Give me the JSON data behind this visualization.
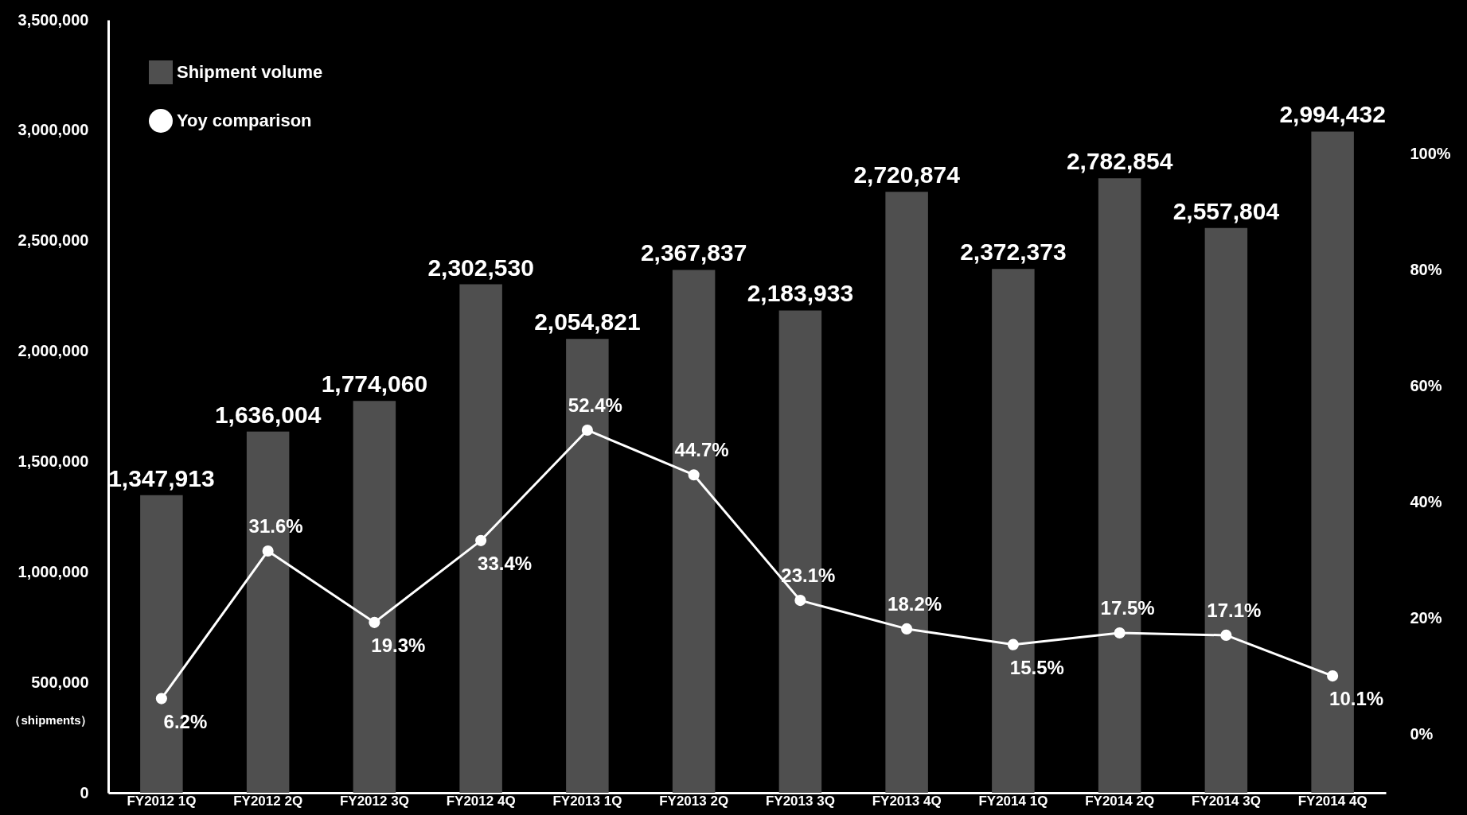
{
  "chart_data": {
    "type": "bar",
    "categories": [
      "FY2012 1Q",
      "FY2012 2Q",
      "FY2012 3Q",
      "FY2012 4Q",
      "FY2013 1Q",
      "FY2013 2Q",
      "FY2013 3Q",
      "FY2013 4Q",
      "FY2014 1Q",
      "FY2014 2Q",
      "FY2014 3Q",
      "FY2014 4Q"
    ],
    "series": [
      {
        "name": "Shipment volume",
        "color": "#4f4f4f",
        "values": [
          1347913,
          1636004,
          1774060,
          2302530,
          2054821,
          2367837,
          2183933,
          2720874,
          2372373,
          2782854,
          2557804,
          2994432
        ],
        "value_labels": [
          "1,347,913",
          "1,636,004",
          "1,774,060",
          "2,302,530",
          "2,054,821",
          "2,367,837",
          "2,183,933",
          "2,720,874",
          "2,372,373",
          "2,782,854",
          "2,557,804",
          "2,994,432"
        ]
      },
      {
        "name": "Yoy comparison",
        "type": "line",
        "axis": "y2",
        "color": "#ffffff",
        "marker": "circle",
        "values": [
          6.2,
          31.6,
          19.3,
          33.4,
          52.4,
          44.7,
          23.1,
          18.2,
          15.5,
          17.5,
          17.1,
          10.1
        ],
        "value_labels": [
          "6.2%",
          "31.6%",
          "19.3%",
          "33.4%",
          "52.4%",
          "44.7%",
          "23.1%",
          "18.2%",
          "15.5%",
          "17.5%",
          "17.1%",
          "10.1%"
        ]
      }
    ],
    "ylabel": "（shipments）",
    "ylim": [
      0,
      3500000
    ],
    "yticks": [
      {
        "value": 0,
        "label": "0"
      },
      {
        "value": 500000,
        "label": "500,000"
      },
      {
        "value": 1000000,
        "label": "1,000,000"
      },
      {
        "value": 1500000,
        "label": "1,500,000"
      },
      {
        "value": 2000000,
        "label": "2,000,000"
      },
      {
        "value": 2500000,
        "label": "2,500,000"
      },
      {
        "value": 3000000,
        "label": "3,000,000"
      },
      {
        "value": 3500000,
        "label": "3,500,000"
      }
    ],
    "y2lim": [
      -10,
      123
    ],
    "y2ticks": [
      {
        "value": 0,
        "label": "0%"
      },
      {
        "value": 20,
        "label": "20%"
      },
      {
        "value": 40,
        "label": "40%"
      },
      {
        "value": 60,
        "label": "60%"
      },
      {
        "value": 80,
        "label": "80%"
      },
      {
        "value": 100,
        "label": "100%"
      }
    ],
    "grid": false,
    "legend": "top left"
  }
}
